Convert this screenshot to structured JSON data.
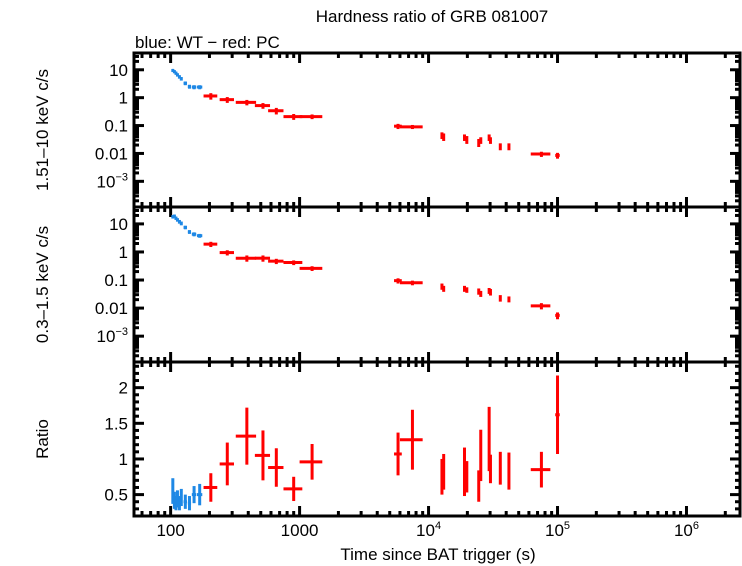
{
  "chart_data": {
    "type": "scatter",
    "title": "Hardness ratio of GRB 081007",
    "subtitle": "blue: WT − red: PC",
    "xlabel": "Time since BAT trigger (s)",
    "xscale": "log",
    "xlim": [
      52,
      2600000
    ],
    "xticks": [
      {
        "value": 100,
        "label": "100",
        "sup": ""
      },
      {
        "value": 1000,
        "label": "1000",
        "sup": ""
      },
      {
        "value": 10000,
        "label": "10",
        "sup": "4"
      },
      {
        "value": 100000,
        "label": "10",
        "sup": "5"
      },
      {
        "value": 1000000,
        "label": "10",
        "sup": "6"
      }
    ],
    "series_colors": {
      "WT": "#1e88e5",
      "PC": "#ff0000"
    },
    "legend": "subtitle-text top-left",
    "panels": [
      {
        "name": "hard-band",
        "ylabel": "1.51–10 keV c/s",
        "yscale": "log",
        "ylim": [
          0.00012,
          40
        ],
        "yticks": [
          {
            "value": 10,
            "label": "10",
            "sup": ""
          },
          {
            "value": 1,
            "label": "1",
            "sup": ""
          },
          {
            "value": 0.1,
            "label": "0.1",
            "sup": ""
          },
          {
            "value": 0.01,
            "label": "0.01",
            "sup": ""
          },
          {
            "value": 0.001,
            "label": "10",
            "sup": "−3"
          }
        ],
        "series": [
          {
            "name": "WT",
            "points": [
              [
                104,
                9.5,
                2,
                1.2
              ],
              [
                107,
                8.6,
                2,
                1.1
              ],
              [
                110,
                7.6,
                2,
                1.0
              ],
              [
                113,
                6.6,
                2,
                0.9
              ],
              [
                117,
                5.6,
                2,
                0.8
              ],
              [
                121,
                4.8,
                2,
                0.7
              ],
              [
                130,
                3.3,
                4,
                0.5
              ],
              [
                140,
                2.5,
                4,
                0.4
              ],
              [
                152,
                2.4,
                6,
                0.4
              ],
              [
                168,
                2.4,
                8,
                0.4
              ]
            ]
          },
          {
            "name": "PC",
            "points": [
              [
                205,
                1.15,
                25,
                0.3
              ],
              [
                275,
                0.85,
                35,
                0.2
              ],
              [
                390,
                0.68,
                70,
                0.15
              ],
              [
                520,
                0.52,
                70,
                0.12
              ],
              [
                660,
                0.34,
                90,
                0.09
              ],
              [
                900,
                0.21,
                150,
                0.05
              ],
              [
                1250,
                0.21,
                250,
                0.04
              ],
              [
                5800,
                0.095,
                400,
                0.02
              ],
              [
                7500,
                0.09,
                1500,
                0.015
              ],
              [
                12700,
                0.045,
                300,
                0.012
              ],
              [
                13100,
                0.04,
                300,
                0.012
              ],
              [
                19000,
                0.038,
                400,
                0.01
              ],
              [
                19800,
                0.032,
                300,
                0.01
              ],
              [
                24500,
                0.025,
                400,
                0.008
              ],
              [
                25400,
                0.03,
                400,
                0.008
              ],
              [
                29500,
                0.038,
                400,
                0.01
              ],
              [
                30200,
                0.03,
                400,
                0.008
              ],
              [
                36000,
                0.018,
                800,
                0.005
              ],
              [
                42000,
                0.018,
                800,
                0.005
              ],
              [
                75000,
                0.0095,
                13000,
                0.002
              ],
              [
                100000,
                0.0085,
                4000,
                0.002
              ]
            ]
          }
        ]
      },
      {
        "name": "soft-band",
        "ylabel": "0.3–1.5 keV c/s",
        "yscale": "log",
        "ylim": [
          0.00012,
          40
        ],
        "yticks": [
          {
            "value": 10,
            "label": "10",
            "sup": ""
          },
          {
            "value": 1,
            "label": "1",
            "sup": ""
          },
          {
            "value": 0.1,
            "label": "0.1",
            "sup": ""
          },
          {
            "value": 0.01,
            "label": "0.01",
            "sup": ""
          },
          {
            "value": 0.001,
            "label": "10",
            "sup": "−3"
          }
        ],
        "series": [
          {
            "name": "WT",
            "points": [
              [
                104,
                18,
                2,
                2.5
              ],
              [
                107,
                19,
                2,
                2.5
              ],
              [
                110,
                16,
                2,
                2.2
              ],
              [
                113,
                14,
                2,
                2.0
              ],
              [
                117,
                12,
                2,
                1.8
              ],
              [
                121,
                10.5,
                2,
                1.6
              ],
              [
                130,
                7.5,
                4,
                1.1
              ],
              [
                140,
                5.2,
                4,
                0.8
              ],
              [
                152,
                4.3,
                6,
                0.7
              ],
              [
                168,
                3.8,
                8,
                0.6
              ]
            ]
          },
          {
            "name": "PC",
            "points": [
              [
                205,
                1.9,
                25,
                0.4
              ],
              [
                275,
                0.95,
                35,
                0.2
              ],
              [
                390,
                0.6,
                70,
                0.15
              ],
              [
                520,
                0.6,
                70,
                0.15
              ],
              [
                660,
                0.47,
                90,
                0.1
              ],
              [
                900,
                0.42,
                150,
                0.08
              ],
              [
                1250,
                0.26,
                250,
                0.05
              ],
              [
                5800,
                0.095,
                400,
                0.02
              ],
              [
                7500,
                0.08,
                1500,
                0.015
              ],
              [
                12700,
                0.06,
                300,
                0.015
              ],
              [
                13100,
                0.05,
                300,
                0.012
              ],
              [
                19000,
                0.05,
                400,
                0.012
              ],
              [
                19800,
                0.045,
                300,
                0.01
              ],
              [
                24500,
                0.04,
                400,
                0.01
              ],
              [
                25400,
                0.033,
                400,
                0.008
              ],
              [
                29500,
                0.042,
                400,
                0.01
              ],
              [
                30200,
                0.038,
                400,
                0.01
              ],
              [
                36000,
                0.023,
                800,
                0.006
              ],
              [
                42000,
                0.021,
                800,
                0.005
              ],
              [
                75000,
                0.012,
                13000,
                0.003
              ],
              [
                100000,
                0.0055,
                4000,
                0.0015
              ]
            ]
          }
        ]
      },
      {
        "name": "ratio",
        "ylabel": "Ratio",
        "yscale": "linear",
        "ylim": [
          0.2,
          2.36
        ],
        "yticks": [
          {
            "value": 2,
            "label": "2",
            "sup": ""
          },
          {
            "value": 1.5,
            "label": "1.5",
            "sup": ""
          },
          {
            "value": 1,
            "label": "1",
            "sup": ""
          },
          {
            "value": 0.5,
            "label": "0.5",
            "sup": ""
          }
        ],
        "series": [
          {
            "name": "WT",
            "points": [
              [
                104,
                0.55,
                2,
                0.18
              ],
              [
                107,
                0.42,
                2,
                0.12
              ],
              [
                110,
                0.38,
                2,
                0.1
              ],
              [
                113,
                0.44,
                2,
                0.12
              ],
              [
                117,
                0.38,
                2,
                0.1
              ],
              [
                121,
                0.46,
                2,
                0.12
              ],
              [
                130,
                0.4,
                4,
                0.1
              ],
              [
                140,
                0.38,
                4,
                0.1
              ],
              [
                152,
                0.5,
                6,
                0.12
              ],
              [
                168,
                0.5,
                8,
                0.15
              ]
            ]
          },
          {
            "name": "PC",
            "points": [
              [
                205,
                0.6,
                25,
                0.2
              ],
              [
                275,
                0.93,
                35,
                0.3
              ],
              [
                390,
                1.32,
                70,
                0.4
              ],
              [
                520,
                1.05,
                70,
                0.35
              ],
              [
                660,
                0.88,
                90,
                0.27
              ],
              [
                900,
                0.58,
                150,
                0.17
              ],
              [
                1250,
                0.96,
                250,
                0.25
              ],
              [
                5800,
                1.07,
                400,
                0.3
              ],
              [
                7500,
                1.27,
                1500,
                0.42
              ],
              [
                12700,
                0.75,
                300,
                0.25
              ],
              [
                13100,
                0.82,
                300,
                0.25
              ],
              [
                19000,
                0.82,
                400,
                0.34
              ],
              [
                19800,
                0.75,
                300,
                0.22
              ],
              [
                24500,
                0.62,
                400,
                0.22
              ],
              [
                25400,
                1.05,
                400,
                0.36
              ],
              [
                29500,
                1.28,
                400,
                0.45
              ],
              [
                30200,
                0.86,
                400,
                0.2
              ],
              [
                36000,
                0.87,
                800,
                0.23
              ],
              [
                42000,
                0.83,
                800,
                0.26
              ],
              [
                75000,
                0.85,
                13000,
                0.25
              ],
              [
                100000,
                1.62,
                4000,
                0.55
              ]
            ]
          }
        ]
      }
    ]
  }
}
